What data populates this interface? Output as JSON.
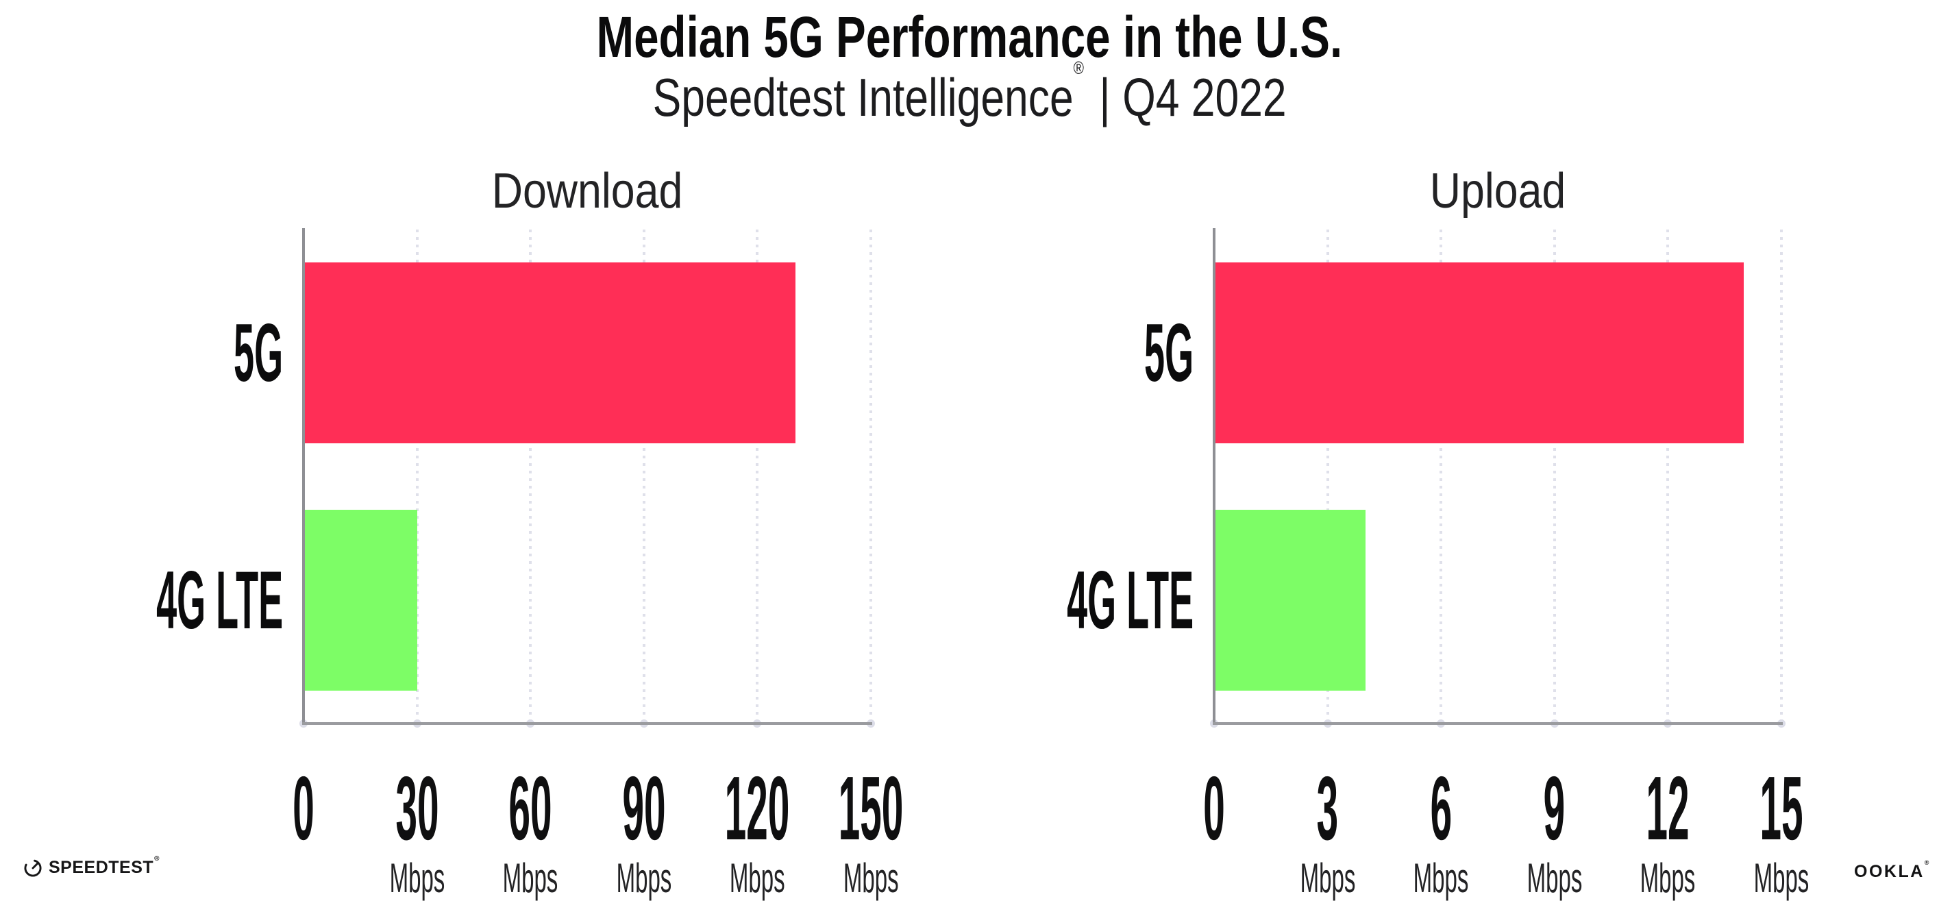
{
  "header": {
    "title": "Median 5G Performance in the U.S.",
    "subtitle": {
      "brand": "Speedtest Intelligence",
      "registered": "®",
      "separator": "|",
      "period": "Q4 2022"
    }
  },
  "chart_data": [
    {
      "type": "bar",
      "orientation": "horizontal",
      "title": "Download",
      "categories": [
        "5G",
        "4G LTE"
      ],
      "values": [
        130,
        30
      ],
      "unit": "Mbps",
      "xlim": [
        0,
        150
      ],
      "xticks": [
        0,
        30,
        60,
        90,
        120,
        150
      ],
      "tick_suffix": "Mbps",
      "bar_colors": [
        "#FF2E56",
        "#7DFD66"
      ],
      "grid": "dotted-vertical",
      "legend": "none"
    },
    {
      "type": "bar",
      "orientation": "horizontal",
      "title": "Upload",
      "categories": [
        "5G",
        "4G LTE"
      ],
      "values": [
        14,
        4
      ],
      "unit": "Mbps",
      "xlim": [
        0,
        15
      ],
      "xticks": [
        0,
        3,
        6,
        9,
        12,
        15
      ],
      "tick_suffix": "Mbps",
      "bar_colors": [
        "#FF2E56",
        "#7DFD66"
      ],
      "grid": "dotted-vertical",
      "legend": "none"
    }
  ],
  "footer": {
    "speedtest_label": "SPEEDTEST",
    "speedtest_mark": "®",
    "ookla_label": "OOKLA",
    "ookla_mark": "®"
  },
  "colors": {
    "bar_5g": "#FF2E56",
    "bar_4g_lte": "#7DFD66",
    "axis": "#8e8f94",
    "grid_dots": "#dfe0ea",
    "tick_dots": "#dcdde8",
    "text": "#111111"
  }
}
